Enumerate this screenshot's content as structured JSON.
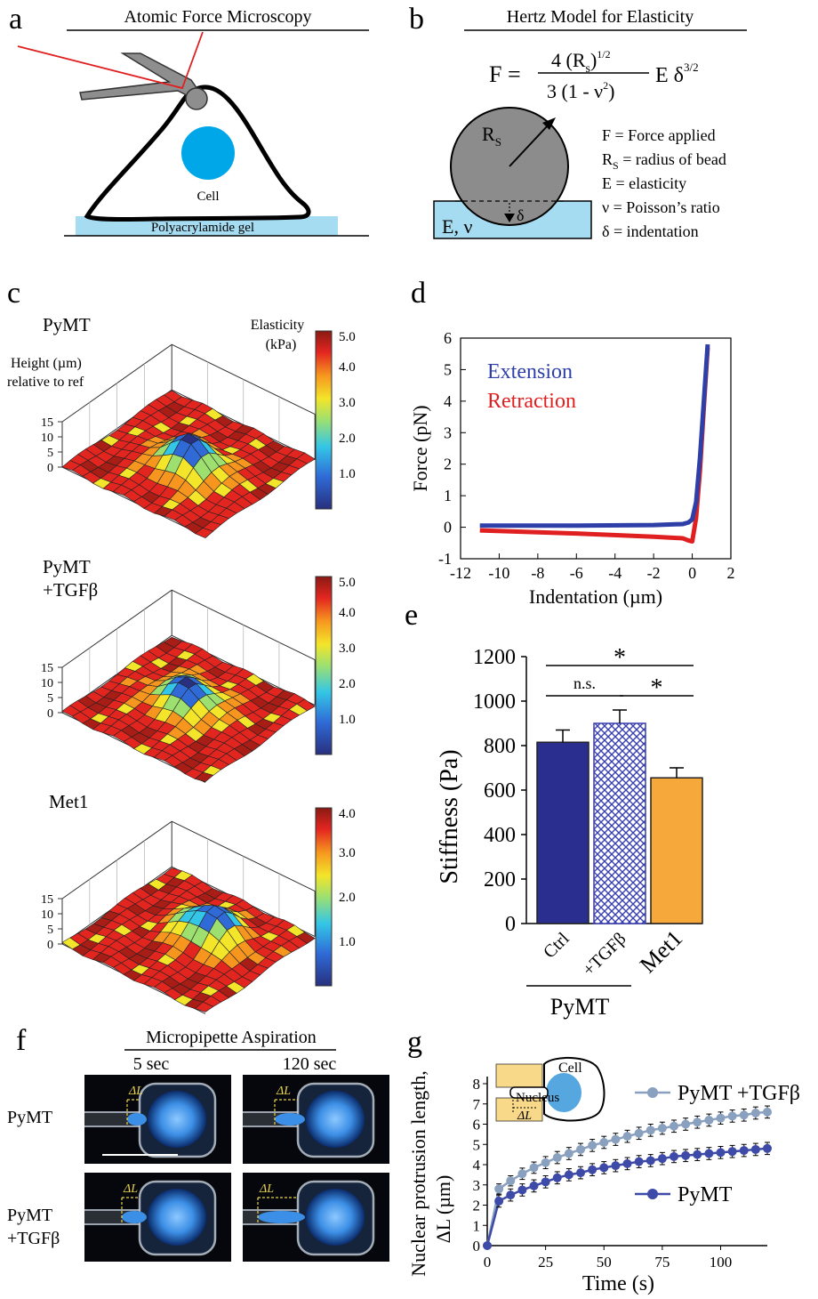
{
  "panels": {
    "a": {
      "letter": "a",
      "title": "Atomic Force Microscopy",
      "cell_label": "Cell",
      "gel_label": "Polyacrylamide gel"
    },
    "b": {
      "letter": "b",
      "title": "Hertz Model for Elasticity",
      "eq_lhs": "F =",
      "eq_num": "4 (R",
      "eq_num_sub": "s",
      "eq_num_tail": ")",
      "eq_num_sup": "1/2",
      "eq_den": "3 (1 - ν",
      "eq_den_sup": "2",
      "eq_den_tail": ")",
      "eq_rhs": "E δ",
      "eq_rhs_sup": "3/2",
      "bead_label": "R",
      "bead_label_sub": "S",
      "delta": "δ",
      "material_label": "E, ν",
      "legend": [
        {
          "sym": "F",
          "sub": "",
          "text": " = Force applied"
        },
        {
          "sym": "R",
          "sub": "S",
          "text": " = radius of bead"
        },
        {
          "sym": "E",
          "sub": "",
          "text": " = elasticity"
        },
        {
          "sym": "ν",
          "sub": "",
          "text": " = Poisson’s ratio"
        },
        {
          "sym": "δ",
          "sub": "",
          "text": " = indentation"
        }
      ]
    },
    "c": {
      "letter": "c",
      "height_label_1": "Height (µm)",
      "height_label_2": "relative to ref",
      "elasticity_label_1": "Elasticity",
      "elasticity_label_2": "(kPa)",
      "z_ticks": [
        "15",
        "10",
        "5",
        "0"
      ],
      "maps": [
        {
          "name_1": "PyMT",
          "name_2": "",
          "colorbar_ticks": [
            "5.0",
            "4.0",
            "3.0",
            "2.0",
            "1.0"
          ],
          "colorbar_max": 5.0
        },
        {
          "name_1": "PyMT",
          "name_2": "+TGFβ",
          "colorbar_ticks": [
            "5.0",
            "4.0",
            "3.0",
            "2.0",
            "1.0"
          ],
          "colorbar_max": 5.0
        },
        {
          "name_1": "Met1",
          "name_2": "",
          "colorbar_ticks": [
            "4.0",
            "3.0",
            "2.0",
            "1.0"
          ],
          "colorbar_max": 4.0
        }
      ]
    },
    "d": {
      "letter": "d",
      "chart_data": {
        "type": "line",
        "xlabel": "Indentation (µm)",
        "ylabel": "Force (pN)",
        "xlim": [
          -12,
          2
        ],
        "ylim": [
          -1,
          6
        ],
        "x_ticks": [
          -12,
          -10,
          -8,
          -6,
          -4,
          -2,
          0,
          2
        ],
        "y_ticks": [
          -1,
          0,
          1,
          2,
          3,
          4,
          5,
          6
        ],
        "legend_position": "top-left",
        "series": [
          {
            "name": "Extension",
            "color": "#2e3fa8",
            "x": [
              -11,
              -6,
              -2,
              -0.5,
              -0.2,
              0,
              0.2,
              0.4,
              0.6,
              0.8
            ],
            "y": [
              0.05,
              0.05,
              0.07,
              0.1,
              0.15,
              0.25,
              0.8,
              2.2,
              4.0,
              5.8
            ]
          },
          {
            "name": "Retraction",
            "color": "#e02020",
            "x": [
              -11,
              -6,
              -2,
              -0.5,
              -0.2,
              0,
              0.2,
              0.4,
              0.6,
              0.8
            ],
            "y": [
              -0.1,
              -0.2,
              -0.3,
              -0.35,
              -0.42,
              -0.45,
              0.3,
              1.8,
              3.8,
              5.7
            ]
          }
        ]
      }
    },
    "e": {
      "letter": "e",
      "chart_data": {
        "type": "bar",
        "categories": [
          "Ctrl",
          "+TGFβ",
          "Met1"
        ],
        "values": [
          815,
          900,
          655
        ],
        "errors": [
          55,
          60,
          45
        ],
        "colors": [
          "#2a2f8f",
          "#3a3fb0",
          "#f6a83a"
        ],
        "ylabel": "Stiffness (Pa)",
        "ylim": [
          0,
          1200
        ],
        "y_ticks": [
          0,
          200,
          400,
          600,
          800,
          1000,
          1200
        ],
        "group_label": "PyMT",
        "significance": [
          {
            "from": 0,
            "to": 2,
            "label": "*"
          },
          {
            "from": 0,
            "to": 1,
            "label": "n.s."
          },
          {
            "from": 1,
            "to": 2,
            "label": "*"
          }
        ]
      }
    },
    "f": {
      "letter": "f",
      "title": "Micropipette Aspiration",
      "col_labels": [
        "5 sec",
        "120 sec"
      ],
      "row_labels": [
        {
          "line_1": "PyMT",
          "line_2": ""
        },
        {
          "line_1": "PyMT",
          "line_2": "+TGFβ"
        }
      ],
      "delta_label": "ΔL"
    },
    "g": {
      "letter": "g",
      "inset_cell": "Cell",
      "inset_nucleus": "Nucleus",
      "inset_delta": "ΔL",
      "chart_data": {
        "type": "line",
        "xlabel": "Time (s)",
        "ylabel_1": "Nuclear protrusion length,",
        "ylabel_2": "ΔL (µm)",
        "xlim": [
          0,
          120
        ],
        "ylim": [
          0,
          8
        ],
        "x_ticks": [
          0,
          25,
          50,
          75,
          100
        ],
        "y_ticks": [
          0,
          1,
          2,
          3,
          4,
          5,
          6,
          7,
          8
        ],
        "series": [
          {
            "name": "PyMT +TGFβ",
            "color": "#8aa0bf",
            "x": [
              0,
              5,
              10,
              15,
              20,
              25,
              30,
              35,
              40,
              45,
              50,
              55,
              60,
              65,
              70,
              75,
              80,
              85,
              90,
              95,
              100,
              105,
              110,
              115,
              120
            ],
            "y": [
              0,
              2.8,
              3.2,
              3.55,
              3.85,
              4.1,
              4.35,
              4.55,
              4.75,
              4.95,
              5.1,
              5.25,
              5.4,
              5.55,
              5.7,
              5.8,
              5.9,
              6.0,
              6.1,
              6.2,
              6.3,
              6.4,
              6.45,
              6.55,
              6.6
            ],
            "err": [
              0,
              0.25,
              0.25,
              0.28,
              0.28,
              0.3,
              0.3,
              0.3,
              0.3,
              0.3,
              0.3,
              0.3,
              0.3,
              0.3,
              0.3,
              0.3,
              0.3,
              0.3,
              0.3,
              0.3,
              0.3,
              0.3,
              0.3,
              0.3,
              0.3
            ]
          },
          {
            "name": "PyMT",
            "color": "#3d4aa8",
            "x": [
              0,
              5,
              10,
              15,
              20,
              25,
              30,
              35,
              40,
              45,
              50,
              55,
              60,
              65,
              70,
              75,
              80,
              85,
              90,
              95,
              100,
              105,
              110,
              115,
              120
            ],
            "y": [
              0,
              2.2,
              2.5,
              2.75,
              2.95,
              3.15,
              3.35,
              3.5,
              3.6,
              3.75,
              3.85,
              3.95,
              4.05,
              4.15,
              4.2,
              4.3,
              4.4,
              4.45,
              4.5,
              4.55,
              4.6,
              4.65,
              4.7,
              4.75,
              4.8
            ],
            "err": [
              0,
              0.3,
              0.3,
              0.3,
              0.3,
              0.3,
              0.3,
              0.3,
              0.3,
              0.3,
              0.3,
              0.3,
              0.3,
              0.3,
              0.3,
              0.3,
              0.3,
              0.3,
              0.3,
              0.3,
              0.3,
              0.3,
              0.3,
              0.3,
              0.3
            ]
          }
        ]
      }
    }
  }
}
